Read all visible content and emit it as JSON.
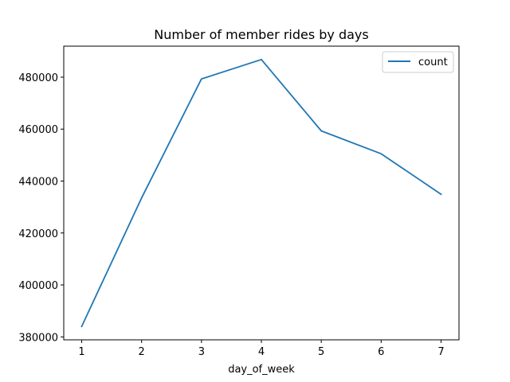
{
  "chart_data": {
    "type": "line",
    "title": "Number of member rides by days",
    "xlabel": "day_of_week",
    "ylabel": "",
    "x": [
      1,
      2,
      3,
      4,
      5,
      6,
      7
    ],
    "series": [
      {
        "name": "count",
        "values": [
          384000,
          433500,
          479300,
          486800,
          459300,
          450500,
          434900
        ]
      }
    ],
    "xticks": [
      "1",
      "2",
      "3",
      "4",
      "5",
      "6",
      "7"
    ],
    "yticks": [
      "380000",
      "400000",
      "420000",
      "440000",
      "460000",
      "480000"
    ],
    "ytick_values": [
      380000,
      400000,
      420000,
      440000,
      460000,
      480000
    ],
    "xlim": [
      0.7,
      7.3
    ],
    "ylim": [
      378860,
      491940
    ],
    "grid": false,
    "legend_position": "top-right",
    "line_color": "#1f77b4"
  }
}
